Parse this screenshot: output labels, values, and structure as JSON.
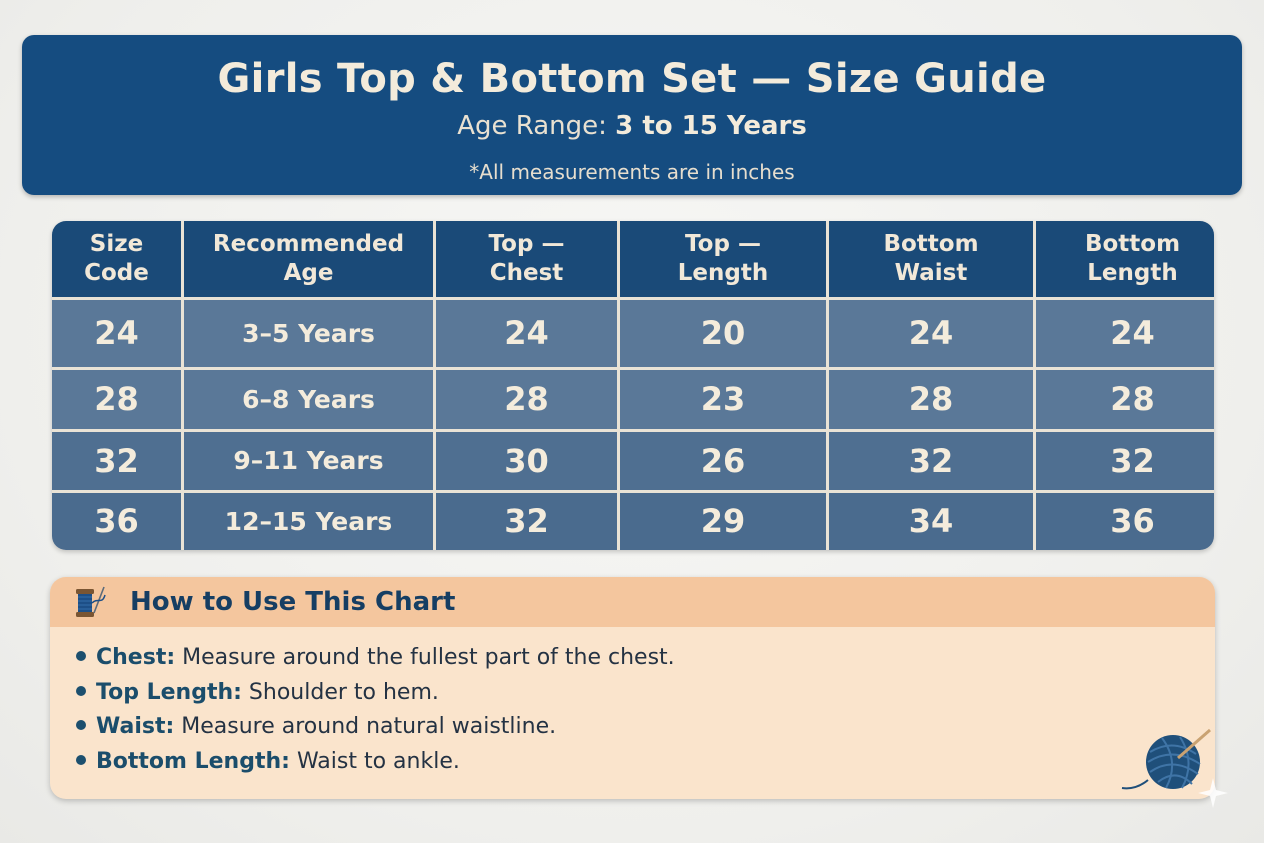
{
  "header": {
    "title": "Girls Top & Bottom Set — Size Guide",
    "age_range_label": "Age Range:",
    "age_range_value": "3 to 15 Years",
    "note": "*All measurements are in inches",
    "background_color": "#154c80"
  },
  "table": {
    "columns": [
      [
        "Size",
        "Code"
      ],
      [
        "Recommended",
        "Age"
      ],
      [
        "Top —",
        "Chest"
      ],
      [
        "Top —",
        "Length"
      ],
      [
        "Bottom",
        "Waist"
      ],
      [
        "Bottom",
        "Length"
      ]
    ],
    "rows": [
      [
        "24",
        "3–5 Years",
        "24",
        "20",
        "24",
        "24"
      ],
      [
        "28",
        "6–8 Years",
        "28",
        "23",
        "28",
        "28"
      ],
      [
        "32",
        "9–11 Years",
        "30",
        "26",
        "32",
        "32"
      ],
      [
        "36",
        "12–15 Years",
        "32",
        "29",
        "34",
        "36"
      ]
    ]
  },
  "howto": {
    "icon": "thread-spool-icon",
    "title": "How to Use This Chart",
    "items": [
      {
        "term": "Chest:",
        "text": " Measure around the fullest part of the chest."
      },
      {
        "term": "Top Length:",
        "text": " Shoulder to hem."
      },
      {
        "term": "Waist:",
        "text": " Measure around natural waistline."
      },
      {
        "term": "Bottom Length:",
        "text": " Waist to ankle."
      }
    ],
    "decoration_icon": "yarn-ball-icon"
  }
}
